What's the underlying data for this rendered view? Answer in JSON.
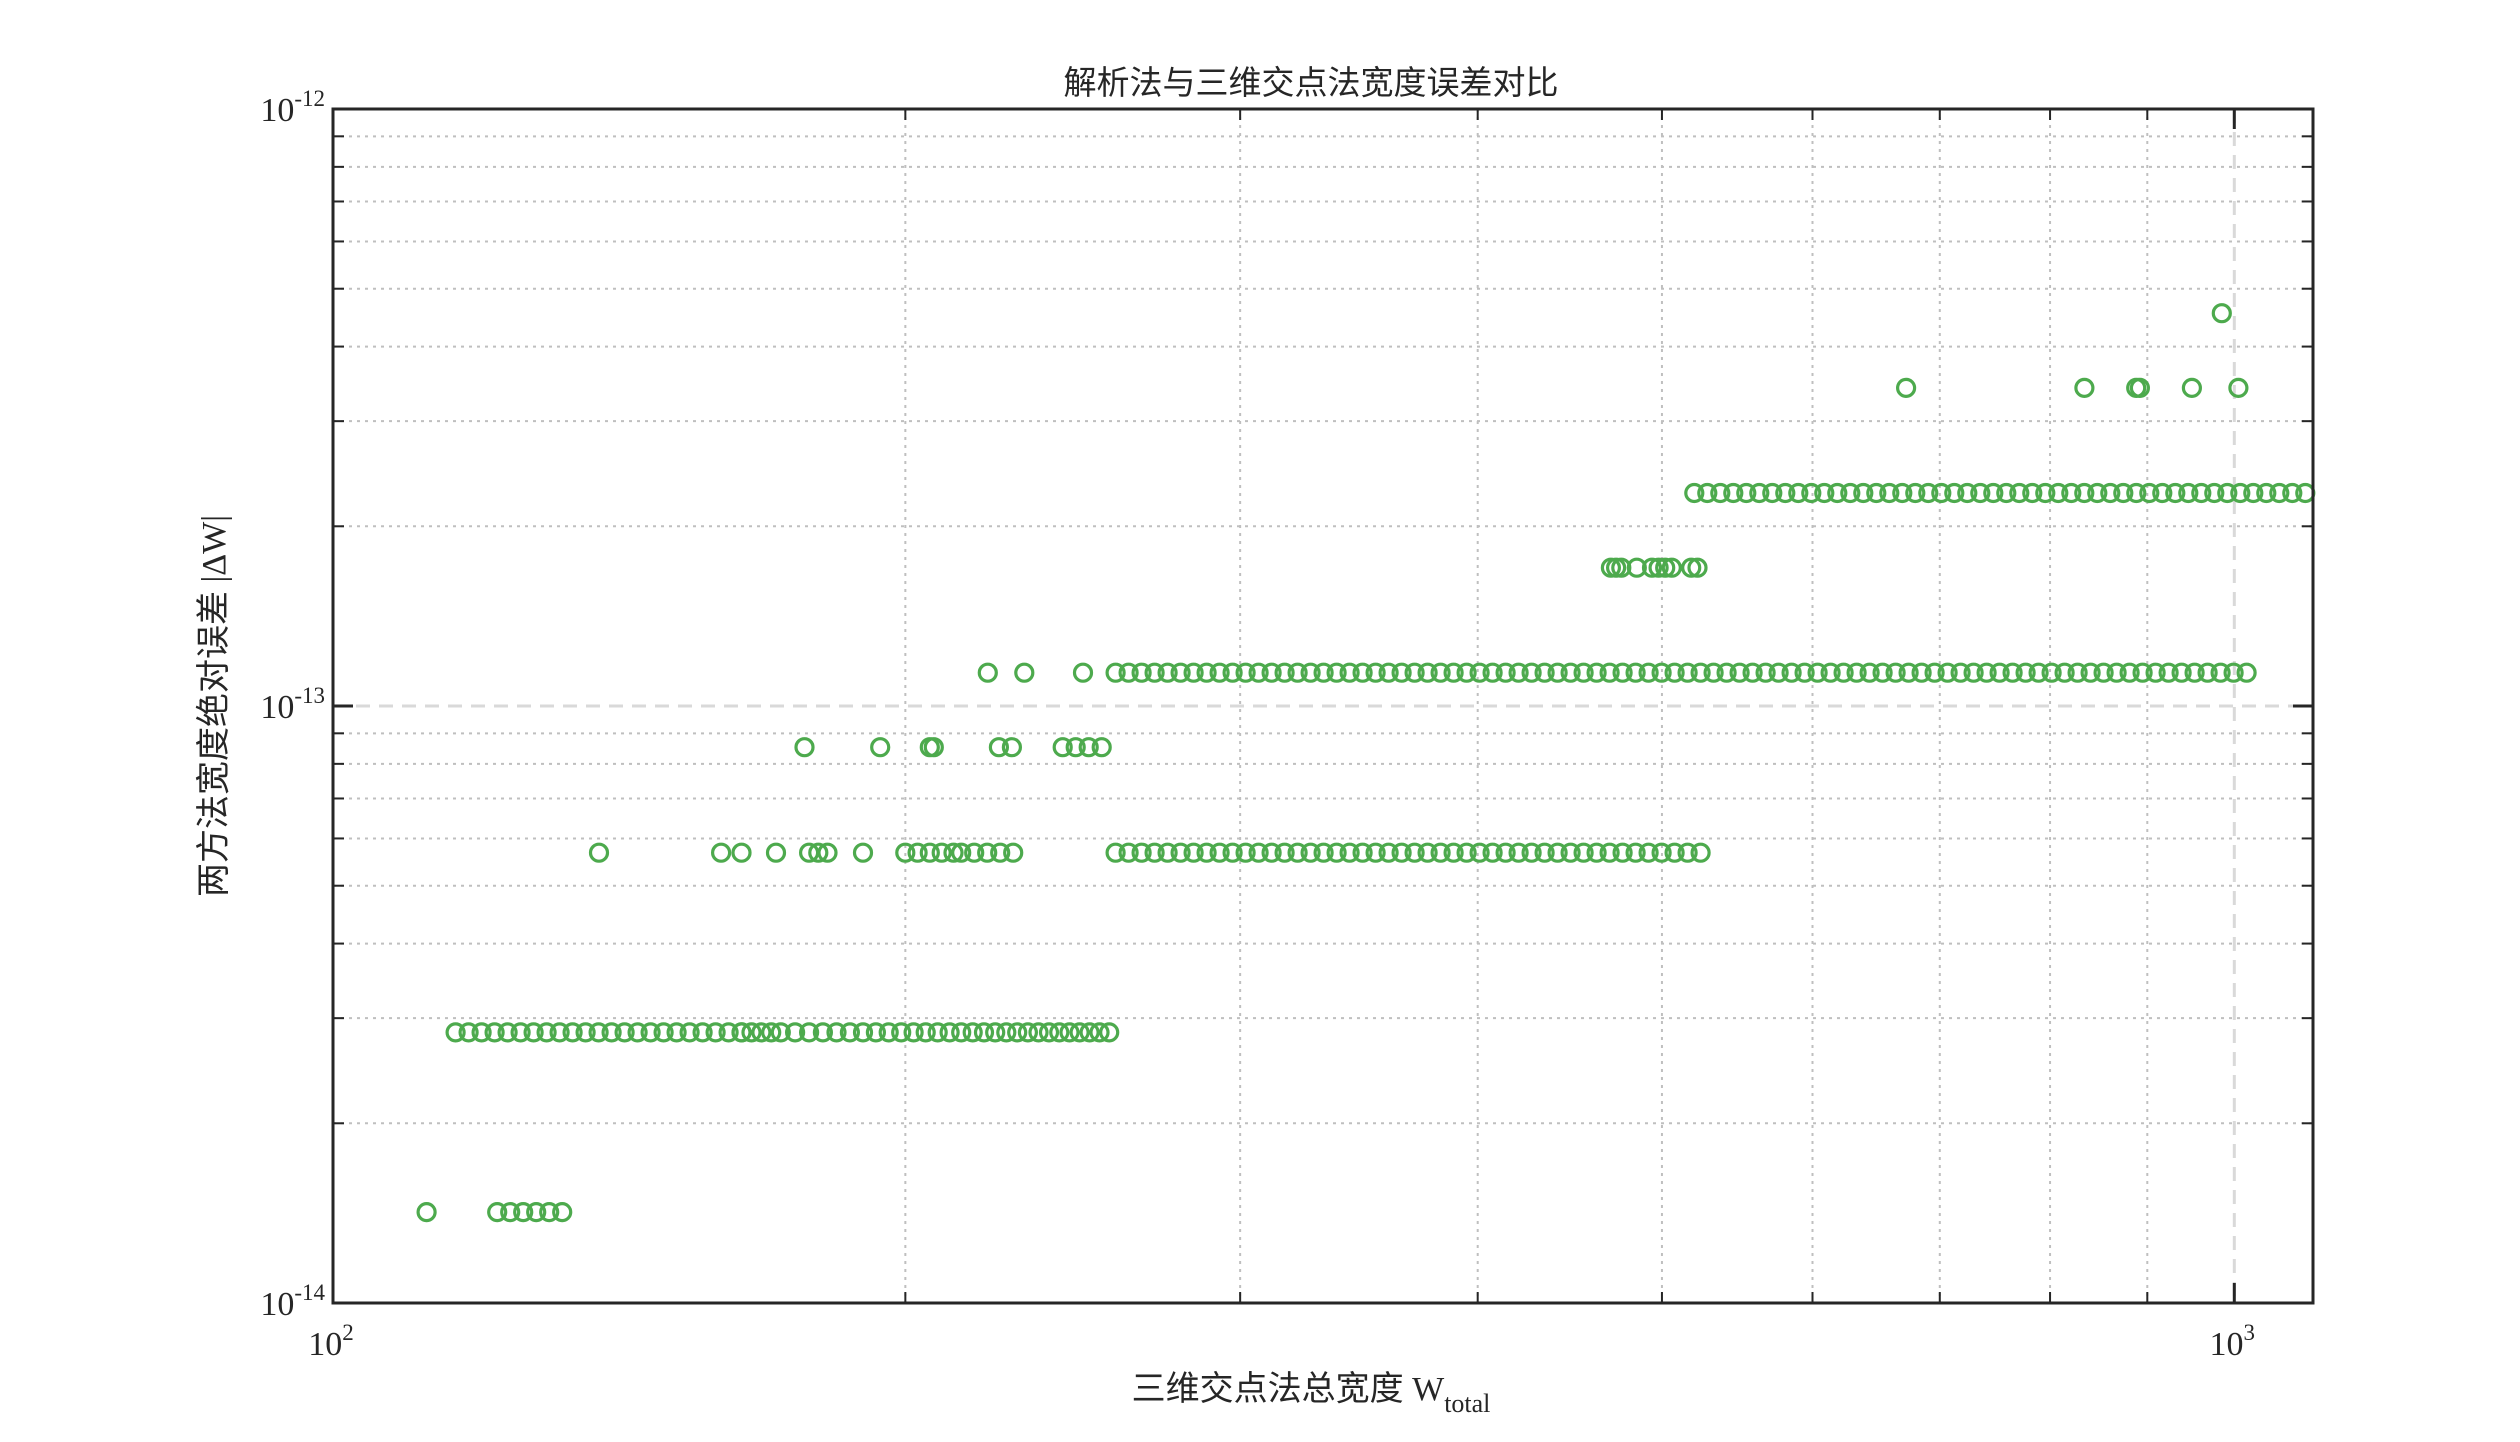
{
  "chart_data": {
    "type": "scatter",
    "title": "解析法与三维交点法宽度误差对比",
    "xlabel": "三维交点法总宽度 W",
    "xlabel_sub": "total",
    "ylabel": "两方法宽度绝对误差 |ΔW|",
    "xscale": "log",
    "yscale": "log",
    "xlim": [
      100,
      1100
    ],
    "ylim": [
      1e-14,
      1e-12
    ],
    "x_ticks": [
      {
        "value": 100,
        "base": "10",
        "exp": "2"
      },
      {
        "value": 1000,
        "base": "10",
        "exp": "3"
      }
    ],
    "y_ticks": [
      {
        "value": 1e-14,
        "base": "10",
        "exp": "-14"
      },
      {
        "value": 1e-13,
        "base": "10",
        "exp": "-13"
      },
      {
        "value": 1e-12,
        "base": "10",
        "exp": "-12"
      }
    ],
    "grid": "dotted-minor",
    "reference_lines": {
      "x": 1000,
      "y": 1e-13,
      "style": "dashed",
      "color": "#d9d9d9"
    },
    "marker": "open-circle",
    "color": "#4daa4d",
    "series": [
      {
        "levels": [
          {
            "y": 1.42e-14,
            "x_ranges": [
              [
                112,
                113
              ],
              [
                122,
                132
              ]
            ]
          },
          {
            "y": 2.84e-14,
            "x_ranges": [
              [
                116,
                164
              ]
            ],
            "x_points": [
              164,
              166,
              168,
              170,
              172,
              175,
              178,
              181,
              184,
              187,
              190,
              193,
              196,
              199,
              202,
              205,
              208,
              211,
              214,
              217,
              220,
              223,
              226,
              229,
              232,
              235,
              238,
              241,
              244,
              247,
              250,
              253,
              256
            ]
          },
          {
            "y": 5.68e-14,
            "x_ranges": [
              [
                214,
                230
              ],
              [
                258,
                524
              ]
            ],
            "x_points": [
              138,
              160,
              164,
              171,
              178,
              180,
              182,
              190,
              200,
              203,
              206,
              209,
              212
            ]
          },
          {
            "y": 8.53e-14,
            "x_ranges": [
              [
                224,
                228
              ],
              [
                242,
                257
              ]
            ],
            "x_points": [
              177,
              194,
              206,
              207
            ]
          },
          {
            "y": 1.137e-13,
            "x_ranges": [
              [
                258,
                1030
              ]
            ],
            "x_points": [
              221,
              231,
              248
            ]
          },
          {
            "y": 1.705e-13,
            "x_points": [
              470,
              473,
              476,
              485,
              494,
              498,
              502,
              506,
              518,
              522
            ]
          },
          {
            "y": 2.274e-13,
            "x_ranges": [
              [
                520,
                1100
              ]
            ]
          },
          {
            "y": 3.41e-13,
            "x_points": [
              672,
              834,
              888,
              892,
              950,
              1005
            ]
          },
          {
            "y": 4.55e-13,
            "x_points": [
              985
            ]
          }
        ]
      }
    ]
  }
}
